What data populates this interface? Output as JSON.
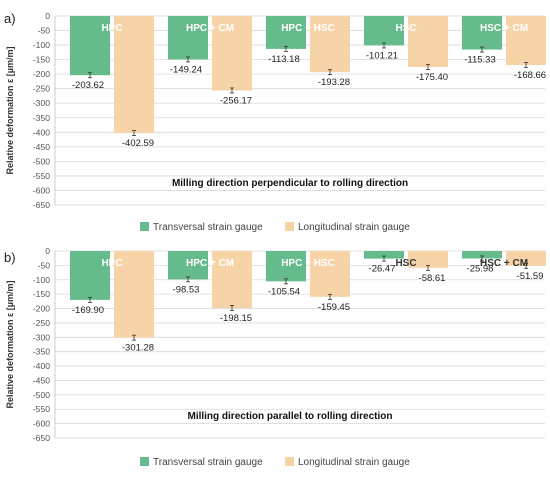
{
  "chart_data": [
    {
      "type": "bar",
      "panel_label": "a)",
      "ylabel": "Relative deformation ε [µm/m]",
      "ylim": [
        -650,
        0
      ],
      "ytick_step": 50,
      "annotation": "Milling direction perpendicular to rolling direction",
      "categories": [
        "HPC",
        "HPC + CM",
        "HPC + HSC",
        "HSC",
        "HSC + CM"
      ],
      "series": [
        {
          "name": "Transversal strain gauge",
          "color": "#66bb8c",
          "values": [
            -203.62,
            -149.24,
            -113.18,
            -101.21,
            -115.33
          ],
          "labels": [
            "-203.62",
            "-149.24",
            "-113.18",
            "-101.21",
            "-115.33"
          ]
        },
        {
          "name": "Longitudinal strain gauge",
          "color": "#f7d4a8",
          "values": [
            -402.59,
            -256.17,
            -193.28,
            -175.4,
            -168.66
          ],
          "labels": [
            "-402.59",
            "-256.17",
            "-193.28",
            "-175.40",
            "-168.66"
          ]
        }
      ],
      "legend_position": "bottom"
    },
    {
      "type": "bar",
      "panel_label": "b)",
      "ylabel": "Relative deformation ε [µm/m]",
      "ylim": [
        -650,
        0
      ],
      "ytick_step": 50,
      "annotation": "Milling direction parallel to rolling direction",
      "categories": [
        "HPC",
        "HPC + CM",
        "HPC + HSC",
        "HSC",
        "HSC + CM"
      ],
      "series": [
        {
          "name": "Transversal strain gauge",
          "color": "#66bb8c",
          "values": [
            -169.9,
            -98.53,
            -105.54,
            -26.47,
            -25.98
          ],
          "labels": [
            "-169.90",
            "-98.53",
            "-105.54",
            "-26.47",
            "-25.98"
          ]
        },
        {
          "name": "Longitudinal strain gauge",
          "color": "#f7d4a8",
          "values": [
            -301.28,
            -198.15,
            -159.45,
            -58.61,
            -51.59
          ],
          "labels": [
            "-301.28",
            "-198.15",
            "-159.45",
            "-58.61",
            "-51.59"
          ]
        }
      ],
      "legend_position": "bottom"
    }
  ]
}
